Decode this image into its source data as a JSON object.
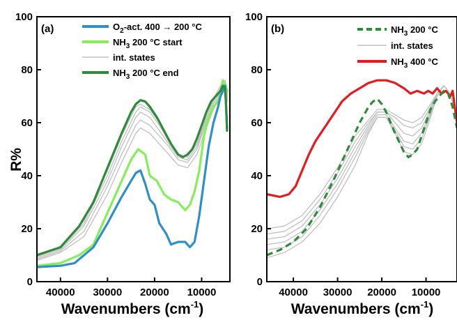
{
  "chart_data": [
    {
      "type": "line",
      "panel_label": "(a)",
      "xlabel": "Wavenumbers (cm",
      "xlabel_sup": "-1",
      "xlabel_end": ")",
      "ylabel": "R%",
      "xlim": [
        45000,
        4000
      ],
      "ylim": [
        0,
        100
      ],
      "xticks": [
        40000,
        30000,
        20000,
        10000
      ],
      "yticks": [
        0,
        20,
        40,
        60,
        80,
        100
      ],
      "legend": [
        {
          "pre": "O",
          "sub": "2",
          "post": "-act. 400 → 200 °C",
          "color": "#2e8fc9",
          "style": "solid",
          "width": 4
        },
        {
          "pre": "NH",
          "sub": "3",
          "post": " 200 °C start",
          "color": "#87ee5a",
          "style": "solid",
          "width": 4
        },
        {
          "pre": "int. states",
          "sub": "",
          "post": "",
          "color": "#c0c0c0",
          "style": "solid",
          "width": 1.5
        },
        {
          "pre": "NH",
          "sub": "3",
          "post": " 200 °C end",
          "color": "#2f8a3c",
          "style": "solid",
          "width": 4
        }
      ],
      "series": [
        {
          "role": "int",
          "color": "#c0c0c0",
          "width": 1.3,
          "x": [
            45000,
            40000,
            35000,
            30000,
            27000,
            24000,
            23000,
            21000,
            19000,
            17000,
            15000,
            13000,
            11000,
            9000,
            7500,
            6000,
            5000,
            4500
          ],
          "y": [
            8,
            11,
            17,
            33,
            45,
            56,
            58,
            56,
            52,
            48,
            44,
            43,
            48,
            58,
            65,
            70,
            72,
            68
          ]
        },
        {
          "role": "int",
          "color": "#c0c0c0",
          "width": 1.3,
          "x": [
            45000,
            40000,
            35000,
            30000,
            27000,
            24000,
            23000,
            21000,
            19000,
            17000,
            15000,
            13000,
            11000,
            9000,
            7500,
            6000,
            5000,
            4500
          ],
          "y": [
            8.5,
            11.5,
            19,
            36,
            48,
            59,
            61,
            59,
            55,
            51,
            46,
            45,
            50,
            60,
            66,
            71,
            73,
            69
          ]
        },
        {
          "role": "int",
          "color": "#c0c0c0",
          "width": 1.3,
          "x": [
            45000,
            40000,
            35000,
            30000,
            27000,
            24000,
            23000,
            21000,
            19000,
            17000,
            15000,
            13000,
            11000,
            9000,
            7500,
            6000,
            5000,
            4500
          ],
          "y": [
            9,
            12,
            21,
            38,
            51,
            62,
            64,
            62,
            57,
            52,
            47,
            46,
            51,
            61,
            67,
            72,
            74,
            70
          ]
        },
        {
          "role": "int",
          "color": "#c0c0c0",
          "width": 1.3,
          "x": [
            45000,
            40000,
            35000,
            30000,
            27000,
            24000,
            23000,
            21000,
            19000,
            17000,
            15000,
            13000,
            11000,
            9000,
            7500,
            6000,
            5000,
            4500
          ],
          "y": [
            9.5,
            12.5,
            22,
            40,
            53,
            64,
            66,
            64,
            59,
            53,
            48,
            47,
            52,
            62,
            68,
            73,
            75,
            71
          ]
        },
        {
          "role": "int",
          "color": "#c0c0c0",
          "width": 1.3,
          "x": [
            45000,
            40000,
            35000,
            30000,
            27000,
            24000,
            23000,
            21000,
            19000,
            17000,
            15000,
            13000,
            11000,
            9000,
            7500,
            6000,
            5000,
            4500
          ],
          "y": [
            10,
            13,
            23,
            42,
            55,
            66,
            67,
            65,
            60,
            54,
            48,
            47,
            52,
            62,
            69,
            74,
            76,
            72
          ]
        },
        {
          "role": "start",
          "color": "#87ee5a",
          "width": 3.2,
          "x": [
            45000,
            40000,
            36000,
            33000,
            30000,
            27000,
            25000,
            23500,
            22000,
            21000,
            19500,
            18000,
            16500,
            15000,
            13500,
            12500,
            11500,
            10500,
            9500,
            8500,
            7500,
            6500,
            6000,
            5500,
            5000,
            4500
          ],
          "y": [
            6,
            7,
            10,
            14,
            26,
            38,
            46,
            50,
            48,
            40,
            38,
            33,
            31,
            30,
            27,
            29,
            34,
            42,
            55,
            62,
            66,
            68,
            72,
            76,
            74,
            72
          ]
        },
        {
          "role": "O2",
          "color": "#2e8fc9",
          "width": 3.2,
          "x": [
            45000,
            40000,
            37000,
            35000,
            33000,
            30000,
            27000,
            25000,
            24000,
            23000,
            22000,
            21000,
            20000,
            19000,
            17500,
            16500,
            15000,
            13500,
            12500,
            11500,
            10500,
            9500,
            8500,
            7500,
            6500,
            6000,
            5500,
            5000,
            4600
          ],
          "y": [
            5.5,
            6,
            7,
            10,
            13,
            22,
            32,
            38,
            41,
            42,
            37,
            31,
            29,
            22,
            18,
            14,
            15,
            15,
            13,
            15,
            25,
            38,
            51,
            60,
            66,
            70,
            72,
            74,
            58
          ]
        },
        {
          "role": "end",
          "color": "#2f8a3c",
          "width": 3.2,
          "x": [
            45000,
            40000,
            36000,
            33000,
            30000,
            27000,
            25000,
            24000,
            23000,
            22000,
            21000,
            19500,
            18000,
            16500,
            15000,
            14000,
            13000,
            12000,
            11000,
            10000,
            9000,
            8000,
            7000,
            6000,
            5500,
            5000,
            4800,
            4600
          ],
          "y": [
            10,
            13,
            21,
            30,
            43,
            56,
            64,
            67,
            68.5,
            68,
            66,
            62,
            57,
            52,
            48,
            47,
            48,
            50,
            54,
            59,
            64,
            68,
            70,
            72,
            74,
            73,
            66,
            57
          ]
        }
      ]
    },
    {
      "type": "line",
      "panel_label": "(b)",
      "xlabel": "Wavenumbers (cm",
      "xlabel_sup": "-1",
      "xlabel_end": ")",
      "ylabel": "",
      "xlim": [
        46000,
        3000
      ],
      "ylim": [
        0,
        100
      ],
      "xticks": [
        40000,
        30000,
        20000,
        10000
      ],
      "yticks": [
        0,
        20,
        40,
        60,
        80,
        100
      ],
      "legend": [
        {
          "pre": "NH",
          "sub": "3",
          "post": " 200 °C",
          "color": "#2f8a3c",
          "style": "dashed",
          "width": 4
        },
        {
          "pre": "int. states",
          "sub": "",
          "post": "",
          "color": "#c0c0c0",
          "style": "solid",
          "width": 1.5
        },
        {
          "pre": "NH",
          "sub": "3",
          "post": " 400 °C",
          "color": "#e8191c",
          "style": "solid",
          "width": 4
        }
      ],
      "series": [
        {
          "role": "int",
          "color": "#c0c0c0",
          "width": 1.3,
          "x": [
            46000,
            42000,
            38000,
            34000,
            30000,
            26000,
            23000,
            21000,
            19000,
            17000,
            15000,
            13000,
            11000,
            9000,
            7500,
            6000,
            5000,
            4000,
            3000
          ],
          "y": [
            9,
            11,
            15,
            22,
            32,
            44,
            56,
            62,
            62,
            56,
            49,
            48,
            52,
            62,
            70,
            74,
            72,
            68,
            62
          ]
        },
        {
          "role": "int",
          "color": "#c0c0c0",
          "width": 1.3,
          "x": [
            46000,
            42000,
            38000,
            34000,
            30000,
            26000,
            23000,
            21000,
            19000,
            17000,
            15000,
            13000,
            11000,
            9000,
            7500,
            6000,
            5000,
            4000,
            3000
          ],
          "y": [
            12,
            13,
            17,
            25,
            35,
            47,
            57,
            62,
            62,
            57,
            51,
            50,
            54,
            63,
            70,
            74,
            72,
            68,
            62
          ]
        },
        {
          "role": "int",
          "color": "#c0c0c0",
          "width": 1.3,
          "x": [
            46000,
            42000,
            38000,
            34000,
            30000,
            26000,
            23000,
            21000,
            19000,
            17000,
            15000,
            13000,
            11000,
            9000,
            7500,
            6000,
            5000,
            4000,
            3000
          ],
          "y": [
            14,
            15,
            19,
            27,
            37,
            49,
            58,
            63,
            63,
            58,
            53,
            52,
            56,
            64,
            70,
            74,
            72,
            68,
            62
          ]
        },
        {
          "role": "int",
          "color": "#c0c0c0",
          "width": 1.3,
          "x": [
            46000,
            42000,
            38000,
            34000,
            30000,
            26000,
            23000,
            21000,
            19000,
            17000,
            15000,
            13000,
            11000,
            9000,
            7500,
            6000,
            5000,
            4000,
            3000
          ],
          "y": [
            16,
            17,
            21,
            29,
            39,
            51,
            59,
            64,
            64,
            60,
            56,
            55,
            58,
            65,
            71,
            74,
            72,
            68,
            62
          ]
        },
        {
          "role": "int",
          "color": "#c0c0c0",
          "width": 1.3,
          "x": [
            46000,
            42000,
            38000,
            34000,
            30000,
            26000,
            23000,
            21000,
            19000,
            17000,
            15000,
            13000,
            11000,
            9000,
            7500,
            6000,
            5000,
            4000,
            3000
          ],
          "y": [
            18,
            19,
            23,
            31,
            41,
            53,
            60,
            64,
            64,
            62,
            59,
            58,
            60,
            66,
            71,
            74,
            72,
            68,
            62
          ]
        },
        {
          "role": "int",
          "color": "#c0c0c0",
          "width": 1.3,
          "x": [
            46000,
            42000,
            38000,
            34000,
            30000,
            26000,
            23000,
            21000,
            19000,
            17000,
            15000,
            13000,
            11000,
            9000,
            7500,
            6000,
            5000,
            4000,
            3000
          ],
          "y": [
            20,
            21,
            25,
            33,
            43,
            55,
            61,
            65,
            65,
            63,
            61,
            60,
            62,
            67,
            71,
            74,
            72,
            68,
            62
          ]
        },
        {
          "role": "NH3-400",
          "color": "#e8191c",
          "width": 3.2,
          "x": [
            46000,
            43000,
            41000,
            39500,
            38000,
            36500,
            35000,
            33000,
            31000,
            29000,
            27000,
            25000,
            23000,
            21000,
            19000,
            17000,
            15000,
            13500,
            12000,
            10500,
            9500,
            8500,
            7500,
            6500,
            5500,
            4500,
            4000,
            3500,
            3000
          ],
          "y": [
            33,
            32,
            33,
            36,
            42,
            48,
            53,
            58,
            63,
            68,
            71,
            73,
            75,
            76,
            76,
            75,
            73,
            71,
            72,
            71,
            72,
            71,
            73,
            71,
            72,
            70,
            72,
            66,
            60
          ]
        },
        {
          "role": "NH3-200",
          "color": "#2f8a3c",
          "width": 3.2,
          "dashed": true,
          "x": [
            46000,
            43000,
            40000,
            37000,
            34000,
            31000,
            28000,
            25000,
            23000,
            22000,
            21000,
            20000,
            19000,
            17000,
            15000,
            14000,
            13000,
            12000,
            11000,
            10000,
            9000,
            8000,
            7000,
            6000,
            5000,
            4000,
            3000
          ],
          "y": [
            10,
            12,
            15,
            20,
            28,
            38,
            49,
            60,
            66,
            68,
            69,
            67,
            64,
            56,
            49,
            47,
            48,
            50,
            55,
            60,
            65,
            68,
            70,
            72,
            71,
            66,
            58
          ]
        }
      ]
    }
  ]
}
